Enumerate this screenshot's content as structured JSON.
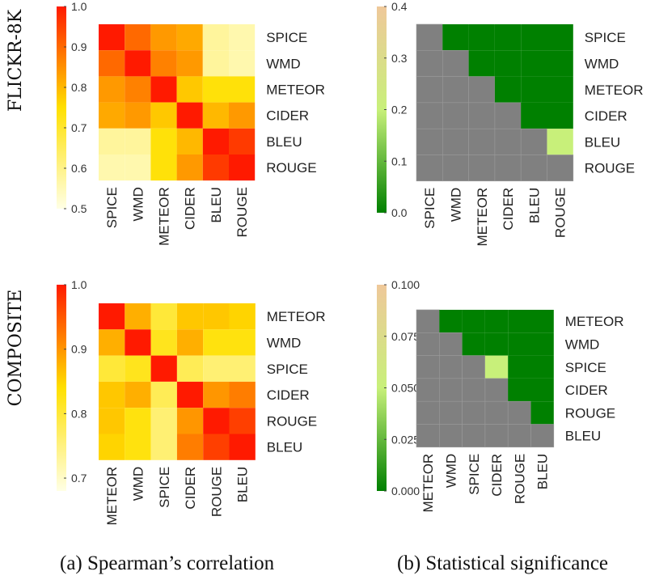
{
  "row_labels": [
    "FLICKR-8K",
    "COMPOSITE"
  ],
  "captions": [
    "(a) Spearman’s correlation",
    "(b) Statistical significance"
  ],
  "chart_data": [
    {
      "type": "heatmap",
      "row": "FLICKR-8K",
      "panel": "Spearman's correlation",
      "metrics": [
        "SPICE",
        "WMD",
        "METEOR",
        "CIDER",
        "BLEU",
        "ROUGE"
      ],
      "values": [
        [
          1.0,
          0.9,
          0.84,
          0.82,
          0.58,
          0.56
        ],
        [
          0.9,
          1.0,
          0.87,
          0.84,
          0.58,
          0.56
        ],
        [
          0.84,
          0.87,
          1.0,
          0.78,
          0.74,
          0.74
        ],
        [
          0.82,
          0.84,
          0.78,
          1.0,
          0.8,
          0.84
        ],
        [
          0.58,
          0.58,
          0.74,
          0.8,
          1.0,
          0.96
        ],
        [
          0.56,
          0.56,
          0.74,
          0.84,
          0.96,
          1.0
        ]
      ],
      "colorbar_ticks": [
        "1.0",
        "0.9",
        "0.8",
        "0.7",
        "0.6",
        "0.5"
      ],
      "range": [
        0.5,
        1.0
      ],
      "colors": {
        "low": "#FFFFE5",
        "mid": "#FFE000",
        "high": "#FF1A00"
      }
    },
    {
      "type": "heatmap",
      "row": "FLICKR-8K",
      "panel": "Statistical significance",
      "metrics": [
        "SPICE",
        "WMD",
        "METEOR",
        "CIDER",
        "BLEU",
        "ROUGE"
      ],
      "values": [
        [
          null,
          0,
          0,
          0,
          0,
          0
        ],
        [
          null,
          null,
          0,
          0,
          0,
          0
        ],
        [
          null,
          null,
          null,
          0,
          0,
          0
        ],
        [
          null,
          null,
          null,
          null,
          0,
          0
        ],
        [
          null,
          null,
          null,
          null,
          null,
          0.2
        ],
        [
          null,
          null,
          null,
          null,
          null,
          null
        ]
      ],
      "colorbar_ticks": [
        "0.4",
        "0.3",
        "0.2",
        "0.1",
        "0.0"
      ],
      "range": [
        0,
        0.4
      ],
      "colors": {
        "low": "#008000",
        "mid": "#C8F07A",
        "high": "#EFC89A",
        "masked": "#808080"
      }
    },
    {
      "type": "heatmap",
      "row": "COMPOSITE",
      "panel": "Spearman's correlation",
      "metrics": [
        "METEOR",
        "WMD",
        "SPICE",
        "CIDER",
        "ROUGE",
        "BLEU"
      ],
      "values": [
        [
          1.0,
          0.88,
          0.8,
          0.86,
          0.86,
          0.85
        ],
        [
          0.88,
          1.0,
          0.82,
          0.88,
          0.83,
          0.83
        ],
        [
          0.8,
          0.82,
          1.0,
          0.78,
          0.76,
          0.76
        ],
        [
          0.86,
          0.88,
          0.78,
          1.0,
          0.9,
          0.92
        ],
        [
          0.86,
          0.83,
          0.76,
          0.9,
          1.0,
          0.97
        ],
        [
          0.85,
          0.83,
          0.76,
          0.92,
          0.97,
          1.0
        ]
      ],
      "colorbar_ticks": [
        "1.0",
        "0.9",
        "0.8",
        "0.7"
      ],
      "range": [
        0.68,
        1.0
      ],
      "colors": {
        "low": "#FFFFE5",
        "mid": "#FFE000",
        "high": "#FF1A00"
      }
    },
    {
      "type": "heatmap",
      "row": "COMPOSITE",
      "panel": "Statistical significance",
      "metrics": [
        "METEOR",
        "WMD",
        "SPICE",
        "CIDER",
        "ROUGE",
        "BLEU"
      ],
      "values": [
        [
          null,
          0,
          0,
          0,
          0,
          0
        ],
        [
          null,
          null,
          0,
          0,
          0,
          0
        ],
        [
          null,
          null,
          null,
          0.05,
          0,
          0
        ],
        [
          null,
          null,
          null,
          null,
          0,
          0
        ],
        [
          null,
          null,
          null,
          null,
          null,
          0
        ],
        [
          null,
          null,
          null,
          null,
          null,
          null
        ]
      ],
      "colorbar_ticks": [
        "0.100",
        "0.075",
        "0.050",
        "0.025",
        "0.000"
      ],
      "range": [
        0,
        0.1
      ],
      "colors": {
        "low": "#008000",
        "mid": "#C8F07A",
        "high": "#EFC89A",
        "masked": "#808080"
      }
    }
  ]
}
